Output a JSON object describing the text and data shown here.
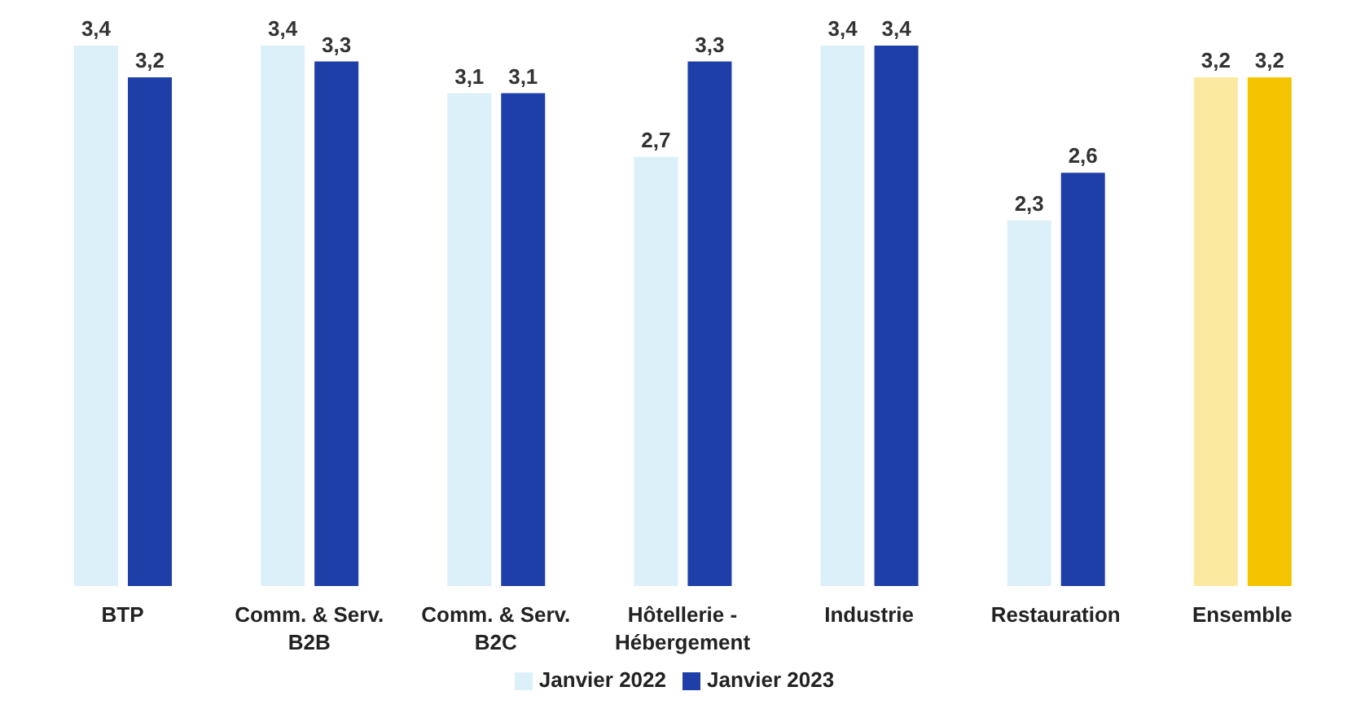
{
  "chart_data": {
    "type": "bar",
    "categories": [
      "BTP",
      "Comm. & Serv. B2B",
      "Comm. & Serv. B2C",
      "Hôtellerie - Hébergement",
      "Industrie",
      "Restauration",
      "Ensemble"
    ],
    "series": [
      {
        "name": "Janvier 2022",
        "color": "#dcf0fa",
        "colors": [
          "#dcf0fa",
          "#dcf0fa",
          "#dcf0fa",
          "#dcf0fa",
          "#dcf0fa",
          "#dcf0fa",
          "#fbe9a0"
        ],
        "values": [
          3.4,
          3.4,
          3.1,
          2.7,
          3.4,
          2.3,
          3.2
        ],
        "value_labels": [
          "3,4",
          "3,4",
          "3,1",
          "2,7",
          "3,4",
          "2,3",
          "3,2"
        ]
      },
      {
        "name": "Janvier 2023",
        "color": "#1f3fa8",
        "colors": [
          "#1f3fa8",
          "#1f3fa8",
          "#1f3fa8",
          "#1f3fa8",
          "#1f3fa8",
          "#1f3fa8",
          "#f5c400"
        ],
        "values": [
          3.2,
          3.3,
          3.1,
          3.3,
          3.4,
          2.6,
          3.2
        ],
        "value_labels": [
          "3,2",
          "3,3",
          "3,1",
          "3,3",
          "3,4",
          "2,6",
          "3,2"
        ]
      }
    ],
    "legend": "bottom"
  }
}
